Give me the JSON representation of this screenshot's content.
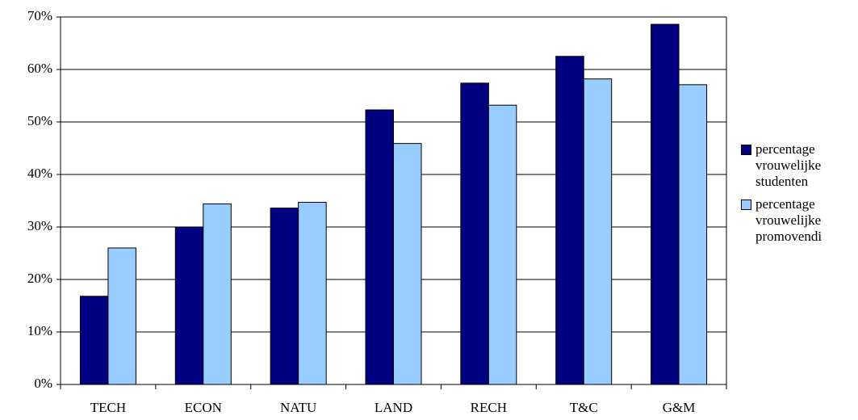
{
  "chart_data": {
    "type": "bar",
    "categories": [
      "TECH",
      "ECON",
      "NATU",
      "LAND",
      "RECH",
      "T&C",
      "G&M"
    ],
    "series": [
      {
        "name": "percentage vrouwelijke studenten",
        "color": "#000080",
        "values": [
          16.8,
          30,
          33.6,
          52.3,
          57.4,
          62.5,
          68.6
        ]
      },
      {
        "name": "percentage vrouwelijke promovendi",
        "color": "#99ccff",
        "values": [
          26,
          34.4,
          34.7,
          45.9,
          53.2,
          58.2,
          57.1
        ]
      }
    ],
    "ylim": [
      0,
      70
    ],
    "yticks": [
      {
        "value": 0,
        "label": "0%"
      },
      {
        "value": 10,
        "label": "10%"
      },
      {
        "value": 20,
        "label": "20%"
      },
      {
        "value": 30,
        "label": "30%"
      },
      {
        "value": 40,
        "label": "40%"
      },
      {
        "value": 50,
        "label": "50%"
      },
      {
        "value": 60,
        "label": "60%"
      },
      {
        "value": 70,
        "label": "70%"
      }
    ],
    "grid": true,
    "legend": "right"
  }
}
